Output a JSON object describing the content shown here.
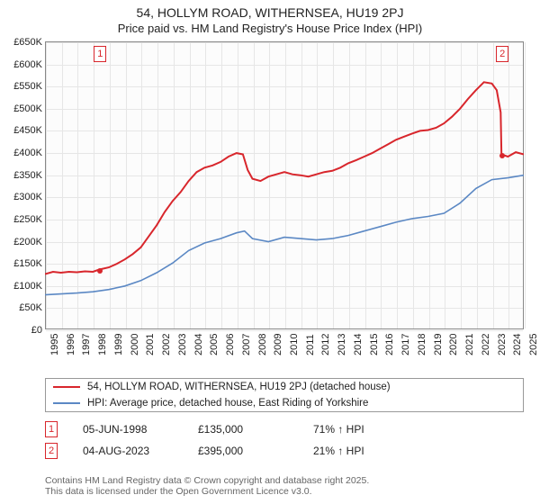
{
  "title": "54, HOLLYM ROAD, WITHERNSEA, HU19 2PJ",
  "subtitle": "Price paid vs. HM Land Registry's House Price Index (HPI)",
  "chart": {
    "type": "line",
    "background_color": "#fcfcfc",
    "grid_color": "#e6e6e6",
    "border_color": "#888888",
    "ylim": [
      0,
      650000
    ],
    "ytick_step": 50000,
    "ylabels": [
      "£0",
      "£50K",
      "£100K",
      "£150K",
      "£200K",
      "£250K",
      "£300K",
      "£350K",
      "£400K",
      "£450K",
      "£500K",
      "£550K",
      "£600K",
      "£650K"
    ],
    "xyears": [
      1995,
      1996,
      1997,
      1998,
      1999,
      2000,
      2001,
      2002,
      2003,
      2004,
      2005,
      2006,
      2007,
      2008,
      2009,
      2010,
      2011,
      2012,
      2013,
      2014,
      2015,
      2016,
      2017,
      2018,
      2019,
      2020,
      2021,
      2022,
      2023,
      2024,
      2025
    ],
    "title_fontsize": 14,
    "label_fontsize": 11,
    "series": [
      {
        "name": "price_paid",
        "label": "54, HOLLYM ROAD, WITHERNSEA, HU19 2PJ (detached house)",
        "color": "#d8262c",
        "line_width": 2,
        "points_by_year": {
          "1995": 125000,
          "1995.5": 130000,
          "1996": 128000,
          "1996.5": 130000,
          "1997": 129000,
          "1997.5": 131000,
          "1998": 130000,
          "1998.4": 135000,
          "1999": 140000,
          "1999.5": 148000,
          "2000": 158000,
          "2000.5": 170000,
          "2001": 185000,
          "2001.5": 210000,
          "2002": 235000,
          "2002.5": 265000,
          "2003": 290000,
          "2003.5": 310000,
          "2004": 335000,
          "2004.5": 355000,
          "2005": 365000,
          "2005.5": 370000,
          "2006": 378000,
          "2006.5": 390000,
          "2007": 398000,
          "2007.4": 395000,
          "2007.7": 360000,
          "2008": 340000,
          "2008.5": 335000,
          "2009": 345000,
          "2009.5": 350000,
          "2010": 355000,
          "2010.5": 350000,
          "2011": 348000,
          "2011.5": 345000,
          "2012": 350000,
          "2012.5": 355000,
          "2013": 358000,
          "2013.5": 365000,
          "2014": 375000,
          "2014.5": 382000,
          "2015": 390000,
          "2015.5": 398000,
          "2016": 408000,
          "2016.5": 418000,
          "2017": 428000,
          "2017.5": 435000,
          "2018": 442000,
          "2018.5": 448000,
          "2019": 450000,
          "2019.5": 455000,
          "2020": 465000,
          "2020.5": 480000,
          "2021": 498000,
          "2021.5": 520000,
          "2022": 540000,
          "2022.5": 558000,
          "2023": 555000,
          "2023.3": 540000,
          "2023.55": 490000,
          "2023.6": 395000,
          "2024": 390000,
          "2024.5": 400000,
          "2025": 395000
        }
      },
      {
        "name": "hpi",
        "label": "HPI: Average price, detached house, East Riding of Yorkshire",
        "color": "#5b88c4",
        "line_width": 1.6,
        "points_by_year": {
          "1995": 78000,
          "1996": 80000,
          "1997": 82000,
          "1998": 85000,
          "1999": 90000,
          "2000": 98000,
          "2001": 110000,
          "2002": 128000,
          "2003": 150000,
          "2004": 178000,
          "2005": 195000,
          "2006": 205000,
          "2007": 218000,
          "2007.5": 222000,
          "2008": 205000,
          "2009": 198000,
          "2010": 208000,
          "2011": 205000,
          "2012": 202000,
          "2013": 205000,
          "2014": 212000,
          "2015": 222000,
          "2016": 232000,
          "2017": 242000,
          "2018": 250000,
          "2019": 255000,
          "2020": 262000,
          "2021": 285000,
          "2022": 318000,
          "2023": 338000,
          "2024": 342000,
          "2025": 348000
        }
      }
    ],
    "flags": [
      {
        "n": "1",
        "year": 1998.4,
        "color": "#d8262c"
      },
      {
        "n": "2",
        "year": 2023.6,
        "color": "#d8262c"
      }
    ],
    "sale_markers": [
      {
        "year": 1998.4,
        "value": 135000,
        "color": "#d8262c"
      },
      {
        "year": 2023.6,
        "value": 395000,
        "color": "#d8262c"
      }
    ]
  },
  "legend": {
    "series1_label": "54, HOLLYM ROAD, WITHERNSEA, HU19 2PJ (detached house)",
    "series2_label": "HPI: Average price, detached house, East Riding of Yorkshire",
    "series1_color": "#d8262c",
    "series2_color": "#5b88c4"
  },
  "sales": [
    {
      "n": "1",
      "date": "05-JUN-1998",
      "price": "£135,000",
      "hpi": "71% ↑ HPI",
      "color": "#d8262c"
    },
    {
      "n": "2",
      "date": "04-AUG-2023",
      "price": "£395,000",
      "hpi": "21% ↑ HPI",
      "color": "#d8262c"
    }
  ],
  "attribution": {
    "line1": "Contains HM Land Registry data © Crown copyright and database right 2025.",
    "line2": "This data is licensed under the Open Government Licence v3.0."
  }
}
